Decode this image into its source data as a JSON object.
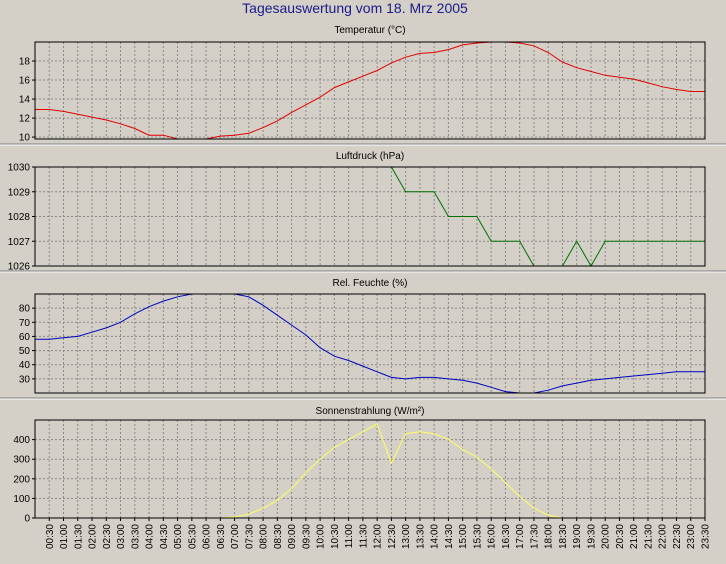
{
  "page": {
    "title": "Tagesauswertung vom 18. Mrz 2005"
  },
  "x_ticks": [
    "00:30",
    "01:00",
    "01:30",
    "02:00",
    "02:30",
    "03:00",
    "03:30",
    "04:00",
    "04:30",
    "05:00",
    "05:30",
    "06:00",
    "06:30",
    "07:00",
    "07:30",
    "08:00",
    "08:30",
    "09:00",
    "09:30",
    "10:00",
    "10:30",
    "11:00",
    "11:30",
    "12:00",
    "12:30",
    "13:00",
    "13:30",
    "14:00",
    "14:30",
    "15:00",
    "15:30",
    "16:00",
    "16:30",
    "17:00",
    "17:30",
    "18:00",
    "18:30",
    "19:00",
    "19:30",
    "20:00",
    "20:30",
    "21:00",
    "21:30",
    "22:00",
    "22:30",
    "23:00",
    "23:30"
  ],
  "chart_data": [
    {
      "type": "line",
      "title": "Temperatur (°C)",
      "color": "#e00000",
      "ylim": [
        9.8,
        20
      ],
      "yticks": [
        10,
        12,
        14,
        16,
        18
      ],
      "series": [
        {
          "x": [
            0,
            1,
            2,
            3,
            4,
            5,
            6,
            7,
            8,
            9,
            10,
            11,
            12,
            13,
            14,
            15,
            16,
            17,
            18,
            19,
            20,
            21,
            22,
            23,
            24,
            25,
            26,
            27,
            28,
            29,
            30,
            31,
            32,
            33,
            34,
            35,
            36,
            37,
            38,
            39,
            40,
            41,
            42,
            43,
            44,
            45,
            46,
            47
          ],
          "values": [
            12.9,
            12.9,
            12.7,
            12.4,
            12.1,
            11.8,
            11.4,
            10.9,
            10.2,
            10.2,
            9.8,
            9.8,
            9.8,
            10.1,
            10.2,
            10.4,
            11.0,
            11.7,
            12.6,
            13.4,
            14.2,
            15.2,
            15.8,
            16.4,
            17.0,
            17.8,
            18.4,
            18.8,
            18.9,
            19.2,
            19.7,
            19.9,
            20.0,
            20.0,
            19.9,
            19.6,
            18.9,
            17.9,
            17.3,
            16.9,
            16.5,
            16.3,
            16.1,
            15.7,
            15.3,
            15.0,
            14.8,
            14.8
          ]
        }
      ]
    },
    {
      "type": "line",
      "title": "Luftdruck (hPa)",
      "color": "#007000",
      "ylim": [
        1026,
        1030
      ],
      "yticks": [
        1026,
        1027,
        1028,
        1029,
        1030
      ],
      "series": [
        {
          "x": [
            25,
            26,
            27,
            28,
            29,
            30,
            31,
            32,
            33,
            34,
            35,
            36,
            37,
            38,
            39,
            40,
            41,
            42,
            43,
            44,
            45,
            46,
            47
          ],
          "values": [
            1030,
            1029,
            1029,
            1029,
            1028,
            1028,
            1028,
            1027,
            1027,
            1027,
            1026,
            1026,
            1026,
            1027,
            1026,
            1027,
            1027,
            1027,
            1027,
            1027,
            1027,
            1027,
            1027
          ]
        }
      ]
    },
    {
      "type": "line",
      "title": "Rel. Feuchte (%)",
      "color": "#0000c0",
      "ylim": [
        20,
        90
      ],
      "yticks": [
        30,
        40,
        50,
        60,
        70,
        80
      ],
      "series": [
        {
          "x": [
            0,
            1,
            2,
            3,
            4,
            5,
            6,
            7,
            8,
            9,
            10,
            11,
            12,
            13,
            14,
            15,
            16,
            17,
            18,
            19,
            20,
            21,
            22,
            23,
            24,
            25,
            26,
            27,
            28,
            29,
            30,
            31,
            32,
            33,
            34,
            35,
            36,
            37,
            38,
            39,
            40,
            41,
            42,
            43,
            44,
            45,
            46,
            47
          ],
          "values": [
            58,
            58,
            59,
            60,
            63,
            66,
            70,
            76,
            81,
            85,
            88,
            90,
            90,
            90,
            90,
            88,
            82,
            75,
            68,
            61,
            52,
            46,
            43,
            39,
            35,
            31,
            30,
            31,
            31,
            30,
            29,
            27,
            24,
            21,
            20,
            20,
            22,
            25,
            27,
            29,
            30,
            31,
            32,
            33,
            34,
            35,
            35,
            35
          ]
        }
      ]
    },
    {
      "type": "line",
      "title": "Sonnenstrahlung (W/m²)",
      "color": "#ffff60",
      "ylim": [
        0,
        500
      ],
      "yticks": [
        0,
        100,
        200,
        300,
        400
      ],
      "series": [
        {
          "x": [
            12,
            13,
            14,
            15,
            16,
            17,
            18,
            19,
            20,
            21,
            22,
            23,
            24,
            25,
            26,
            27,
            28,
            29,
            30,
            31,
            32,
            33,
            34,
            35,
            36,
            37
          ],
          "values": [
            0,
            0,
            5,
            20,
            50,
            90,
            150,
            230,
            300,
            360,
            400,
            440,
            480,
            280,
            430,
            440,
            430,
            400,
            350,
            310,
            250,
            180,
            110,
            50,
            15,
            0
          ]
        }
      ]
    }
  ]
}
